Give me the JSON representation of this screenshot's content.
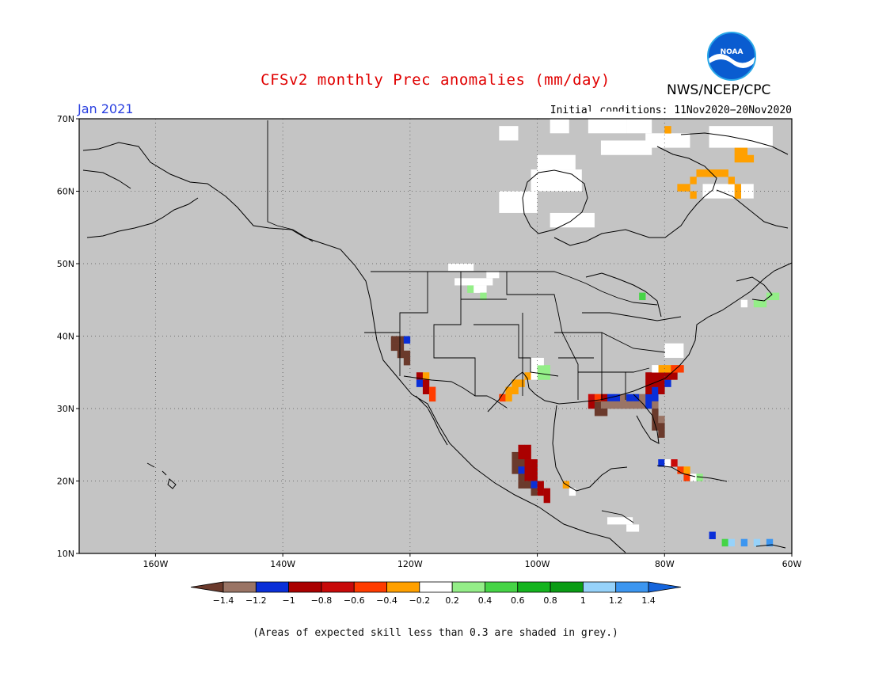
{
  "title": "CFSv2 monthly Prec anomalies (mm/day)",
  "agency": "NWS/NCEP/CPC",
  "logo_text": "NOAA",
  "target_month": "Jan 2021",
  "initial_conditions": "Initial conditions: 11Nov2020−20Nov2020",
  "footnote": "(Areas of expected skill less than 0.3 are shaded in grey.)",
  "map": {
    "lon_range": [
      -172,
      -60
    ],
    "lat_range": [
      10,
      70
    ],
    "background_grey": "#c4c4c4",
    "lat_ticks": [
      "70N",
      "60N",
      "50N",
      "40N",
      "30N",
      "20N",
      "10N"
    ],
    "lat_tick_values": [
      70,
      60,
      50,
      40,
      30,
      20,
      10
    ],
    "lon_ticks": [
      "160W",
      "140W",
      "120W",
      "100W",
      "80W",
      "60W"
    ],
    "lon_tick_values": [
      -160,
      -140,
      -120,
      -100,
      -80,
      -60
    ]
  },
  "colorbar": {
    "labels": [
      "−1.4",
      "−1.2",
      "−1",
      "−0.8",
      "−0.6",
      "−0.4",
      "−0.2",
      "0.2",
      "0.4",
      "0.6",
      "0.8",
      "1",
      "1.2",
      "1.4"
    ],
    "colors": [
      "#6b3a2c",
      "#9a7465",
      "#0a2fd8",
      "#aa0000",
      "#c80a0a",
      "#ff3c00",
      "#ffa000",
      "#ffffff",
      "#94ee88",
      "#46d446",
      "#14b41e",
      "#0a9c14",
      "#96d2fa",
      "#3c96f0",
      "#1464dc"
    ]
  },
  "anomaly_cells": [
    {
      "lon": -123,
      "lat": 39,
      "c": "#6b3a2c"
    },
    {
      "lon": -122,
      "lat": 39,
      "c": "#6b3a2c"
    },
    {
      "lon": -121,
      "lat": 39,
      "c": "#0a2fd8"
    },
    {
      "lon": -123,
      "lat": 38,
      "c": "#6b3a2c"
    },
    {
      "lon": -122,
      "lat": 38,
      "c": "#6b3a2c"
    },
    {
      "lon": -122,
      "lat": 37,
      "c": "#6b3a2c"
    },
    {
      "lon": -121,
      "lat": 37,
      "c": "#6b3a2c"
    },
    {
      "lon": -121,
      "lat": 36,
      "c": "#6b3a2c"
    },
    {
      "lon": -119,
      "lat": 34,
      "c": "#aa0000"
    },
    {
      "lon": -118,
      "lat": 34,
      "c": "#ffa000"
    },
    {
      "lon": -119,
      "lat": 33,
      "c": "#0a2fd8"
    },
    {
      "lon": -118,
      "lat": 33,
      "c": "#aa0000"
    },
    {
      "lon": -118,
      "lat": 32,
      "c": "#aa0000"
    },
    {
      "lon": -117,
      "lat": 32,
      "c": "#ff3c00"
    },
    {
      "lon": -117,
      "lat": 31,
      "c": "#ff3c00"
    },
    {
      "lon": -104,
      "lat": 33,
      "c": "#ffa000"
    },
    {
      "lon": -103,
      "lat": 33,
      "c": "#ffa000"
    },
    {
      "lon": -105,
      "lat": 32,
      "c": "#ffa000"
    },
    {
      "lon": -104,
      "lat": 32,
      "c": "#ffa000"
    },
    {
      "lon": -106,
      "lat": 31,
      "c": "#ff3c00"
    },
    {
      "lon": -105,
      "lat": 31,
      "c": "#ffa000"
    },
    {
      "lon": -102,
      "lat": 34,
      "c": "#ffa000"
    },
    {
      "lon": -101,
      "lat": 35,
      "c": "#ffffff"
    },
    {
      "lon": -100,
      "lat": 35,
      "c": "#94ee88"
    },
    {
      "lon": -99,
      "lat": 35,
      "c": "#94ee88"
    },
    {
      "lon": -100,
      "lat": 34,
      "c": "#94ee88"
    },
    {
      "lon": -99,
      "lat": 34,
      "c": "#94ee88"
    },
    {
      "lon": -101,
      "lat": 36,
      "c": "#ffffff"
    },
    {
      "lon": -100,
      "lat": 36,
      "c": "#ffffff"
    },
    {
      "lon": -101,
      "lat": 34,
      "c": "#ffffff"
    },
    {
      "lon": -92,
      "lat": 31,
      "c": "#c80a0a"
    },
    {
      "lon": -91,
      "lat": 31,
      "c": "#ff3c00"
    },
    {
      "lon": -90,
      "lat": 31,
      "c": "#aa0000"
    },
    {
      "lon": -89,
      "lat": 31,
      "c": "#0a2fd8"
    },
    {
      "lon": -88,
      "lat": 31,
      "c": "#0a2fd8"
    },
    {
      "lon": -87,
      "lat": 31,
      "c": "#9a7465"
    },
    {
      "lon": -86,
      "lat": 31,
      "c": "#0a2fd8"
    },
    {
      "lon": -85,
      "lat": 31,
      "c": "#0a2fd8"
    },
    {
      "lon": -84,
      "lat": 31,
      "c": "#9a7465"
    },
    {
      "lon": -83,
      "lat": 31,
      "c": "#0a2fd8"
    },
    {
      "lon": -82,
      "lat": 31,
      "c": "#0a2fd8"
    },
    {
      "lon": -92,
      "lat": 30,
      "c": "#aa0000"
    },
    {
      "lon": -91,
      "lat": 30,
      "c": "#6b3a2c"
    },
    {
      "lon": -90,
      "lat": 30,
      "c": "#9a7465"
    },
    {
      "lon": -89,
      "lat": 30,
      "c": "#9a7465"
    },
    {
      "lon": -88,
      "lat": 30,
      "c": "#9a7465"
    },
    {
      "lon": -87,
      "lat": 30,
      "c": "#9a7465"
    },
    {
      "lon": -86,
      "lat": 30,
      "c": "#9a7465"
    },
    {
      "lon": -85,
      "lat": 30,
      "c": "#9a7465"
    },
    {
      "lon": -84,
      "lat": 30,
      "c": "#9a7465"
    },
    {
      "lon": -83,
      "lat": 30,
      "c": "#0a2fd8"
    },
    {
      "lon": -82,
      "lat": 30,
      "c": "#9a7465"
    },
    {
      "lon": -91,
      "lat": 29,
      "c": "#6b3a2c"
    },
    {
      "lon": -90,
      "lat": 29,
      "c": "#6b3a2c"
    },
    {
      "lon": -82,
      "lat": 29,
      "c": "#6b3a2c"
    },
    {
      "lon": -82,
      "lat": 28,
      "c": "#6b3a2c"
    },
    {
      "lon": -81,
      "lat": 28,
      "c": "#9a7465"
    },
    {
      "lon": -82,
      "lat": 27,
      "c": "#6b3a2c"
    },
    {
      "lon": -81,
      "lat": 27,
      "c": "#6b3a2c"
    },
    {
      "lon": -81,
      "lat": 26,
      "c": "#6b3a2c"
    },
    {
      "lon": -83,
      "lat": 32,
      "c": "#aa0000"
    },
    {
      "lon": -82,
      "lat": 32,
      "c": "#0a2fd8"
    },
    {
      "lon": -81,
      "lat": 32,
      "c": "#aa0000"
    },
    {
      "lon": -83,
      "lat": 33,
      "c": "#aa0000"
    },
    {
      "lon": -82,
      "lat": 33,
      "c": "#aa0000"
    },
    {
      "lon": -81,
      "lat": 33,
      "c": "#aa0000"
    },
    {
      "lon": -80,
      "lat": 33,
      "c": "#0a2fd8"
    },
    {
      "lon": -83,
      "lat": 34,
      "c": "#aa0000"
    },
    {
      "lon": -82,
      "lat": 34,
      "c": "#aa0000"
    },
    {
      "lon": -81,
      "lat": 34,
      "c": "#aa0000"
    },
    {
      "lon": -80,
      "lat": 34,
      "c": "#aa0000"
    },
    {
      "lon": -79,
      "lat": 34,
      "c": "#aa0000"
    },
    {
      "lon": -81,
      "lat": 35,
      "c": "#ffa000"
    },
    {
      "lon": -80,
      "lat": 35,
      "c": "#ffa000"
    },
    {
      "lon": -79,
      "lat": 35,
      "c": "#ff3c00"
    },
    {
      "lon": -78,
      "lat": 35,
      "c": "#ff3c00"
    },
    {
      "lon": -82,
      "lat": 35,
      "c": "#ffffff"
    },
    {
      "lon": -103,
      "lat": 24,
      "c": "#aa0000"
    },
    {
      "lon": -102,
      "lat": 24,
      "c": "#aa0000"
    },
    {
      "lon": -104,
      "lat": 23,
      "c": "#6b3a2c"
    },
    {
      "lon": -103,
      "lat": 23,
      "c": "#aa0000"
    },
    {
      "lon": -102,
      "lat": 23,
      "c": "#aa0000"
    },
    {
      "lon": -104,
      "lat": 22,
      "c": "#6b3a2c"
    },
    {
      "lon": -103,
      "lat": 22,
      "c": "#6b3a2c"
    },
    {
      "lon": -102,
      "lat": 22,
      "c": "#aa0000"
    },
    {
      "lon": -101,
      "lat": 22,
      "c": "#aa0000"
    },
    {
      "lon": -104,
      "lat": 21,
      "c": "#6b3a2c"
    },
    {
      "lon": -103,
      "lat": 21,
      "c": "#0a2fd8"
    },
    {
      "lon": -102,
      "lat": 21,
      "c": "#aa0000"
    },
    {
      "lon": -101,
      "lat": 21,
      "c": "#aa0000"
    },
    {
      "lon": -103,
      "lat": 20,
      "c": "#6b3a2c"
    },
    {
      "lon": -102,
      "lat": 20,
      "c": "#aa0000"
    },
    {
      "lon": -101,
      "lat": 20,
      "c": "#aa0000"
    },
    {
      "lon": -103,
      "lat": 19,
      "c": "#6b3a2c"
    },
    {
      "lon": -102,
      "lat": 19,
      "c": "#6b3a2c"
    },
    {
      "lon": -101,
      "lat": 19,
      "c": "#0a2fd8"
    },
    {
      "lon": -100,
      "lat": 19,
      "c": "#aa0000"
    },
    {
      "lon": -101,
      "lat": 18,
      "c": "#6b3a2c"
    },
    {
      "lon": -100,
      "lat": 18,
      "c": "#aa0000"
    },
    {
      "lon": -99,
      "lat": 18,
      "c": "#aa0000"
    },
    {
      "lon": -99,
      "lat": 17,
      "c": "#aa0000"
    },
    {
      "lon": -96,
      "lat": 19,
      "c": "#ffa000"
    },
    {
      "lon": -95,
      "lat": 18,
      "c": "#ffffff"
    },
    {
      "lon": -81,
      "lat": 22,
      "c": "#0a2fd8"
    },
    {
      "lon": -80,
      "lat": 22,
      "c": "#ffffff"
    },
    {
      "lon": -79,
      "lat": 22,
      "c": "#c80a0a"
    },
    {
      "lon": -78,
      "lat": 21,
      "c": "#ff3c00"
    },
    {
      "lon": -77,
      "lat": 21,
      "c": "#ffa000"
    },
    {
      "lon": -77,
      "lat": 20,
      "c": "#ff3c00"
    },
    {
      "lon": -76,
      "lat": 20,
      "c": "#ffffff"
    },
    {
      "lon": -75,
      "lat": 20,
      "c": "#94ee88"
    },
    {
      "lon": -111,
      "lat": 46,
      "c": "#94ee88"
    },
    {
      "lon": -110,
      "lat": 46,
      "c": "#ffffff"
    },
    {
      "lon": -109,
      "lat": 46,
      "c": "#ffffff"
    },
    {
      "lon": -109,
      "lat": 45,
      "c": "#94ee88"
    },
    {
      "lon": -84,
      "lat": 45,
      "c": "#46d446"
    },
    {
      "lon": -68,
      "lat": 44,
      "c": "#ffffff"
    },
    {
      "lon": -66,
      "lat": 44,
      "c": "#94ee88"
    },
    {
      "lon": -65,
      "lat": 44,
      "c": "#94ee88"
    },
    {
      "lon": -64,
      "lat": 45,
      "c": "#94ee88"
    },
    {
      "lon": -63,
      "lat": 45,
      "c": "#94ee88"
    },
    {
      "lon": -75,
      "lat": 62,
      "c": "#ffa000"
    },
    {
      "lon": -74,
      "lat": 62,
      "c": "#ffa000"
    },
    {
      "lon": -73,
      "lat": 62,
      "c": "#ffa000"
    },
    {
      "lon": -72,
      "lat": 62,
      "c": "#ffa000"
    },
    {
      "lon": -71,
      "lat": 62,
      "c": "#ffa000"
    },
    {
      "lon": -76,
      "lat": 61,
      "c": "#ffa000"
    },
    {
      "lon": -70,
      "lat": 61,
      "c": "#ffa000"
    },
    {
      "lon": -69,
      "lat": 60,
      "c": "#ffa000"
    },
    {
      "lon": -77,
      "lat": 60,
      "c": "#ffa000"
    },
    {
      "lon": -78,
      "lat": 60,
      "c": "#ffa000"
    },
    {
      "lon": -76,
      "lat": 59,
      "c": "#ffa000"
    },
    {
      "lon": -69,
      "lat": 59,
      "c": "#ffa000"
    },
    {
      "lon": -69,
      "lat": 65,
      "c": "#ffa000"
    },
    {
      "lon": -68,
      "lat": 65,
      "c": "#ffa000"
    },
    {
      "lon": -69,
      "lat": 64,
      "c": "#ffa000"
    },
    {
      "lon": -68,
      "lat": 64,
      "c": "#ffa000"
    },
    {
      "lon": -67,
      "lat": 64,
      "c": "#ffa000"
    },
    {
      "lon": -80,
      "lat": 68,
      "c": "#ffa000"
    },
    {
      "lon": -73,
      "lat": 12,
      "c": "#0a2fd8"
    },
    {
      "lon": -71,
      "lat": 11,
      "c": "#46d446"
    },
    {
      "lon": -70,
      "lat": 11,
      "c": "#96d2fa"
    },
    {
      "lon": -68,
      "lat": 11,
      "c": "#3c96f0"
    },
    {
      "lon": -66,
      "lat": 11,
      "c": "#96d2fa"
    },
    {
      "lon": -64,
      "lat": 11,
      "c": "#3c96f0"
    }
  ],
  "white_patches": [
    {
      "lon": -106,
      "lat": 67,
      "w": 3,
      "h": 2
    },
    {
      "lon": -98,
      "lat": 68,
      "w": 3,
      "h": 2
    },
    {
      "lon": -92,
      "lat": 68,
      "w": 6,
      "h": 3
    },
    {
      "lon": -90,
      "lat": 65,
      "w": 8,
      "h": 2
    },
    {
      "lon": -100,
      "lat": 63,
      "w": 6,
      "h": 2
    },
    {
      "lon": -101,
      "lat": 60,
      "w": 8,
      "h": 3
    },
    {
      "lon": -106,
      "lat": 57,
      "w": 6,
      "h": 3
    },
    {
      "lon": -98,
      "lat": 55,
      "w": 7,
      "h": 2
    },
    {
      "lon": -114,
      "lat": 49,
      "w": 4,
      "h": 1
    },
    {
      "lon": -113,
      "lat": 47,
      "w": 6,
      "h": 1
    },
    {
      "lon": -108,
      "lat": 48,
      "w": 2,
      "h": 1
    },
    {
      "lon": -83,
      "lat": 66,
      "w": 7,
      "h": 2
    },
    {
      "lon": -86,
      "lat": 68,
      "w": 4,
      "h": 2
    },
    {
      "lon": -73,
      "lat": 66,
      "w": 10,
      "h": 3
    },
    {
      "lon": -74,
      "lat": 59,
      "w": 8,
      "h": 2
    },
    {
      "lon": -80,
      "lat": 37,
      "w": 3,
      "h": 2
    },
    {
      "lon": -89,
      "lat": 14,
      "w": 4,
      "h": 1
    },
    {
      "lon": -86,
      "lat": 13,
      "w": 2,
      "h": 1
    }
  ]
}
